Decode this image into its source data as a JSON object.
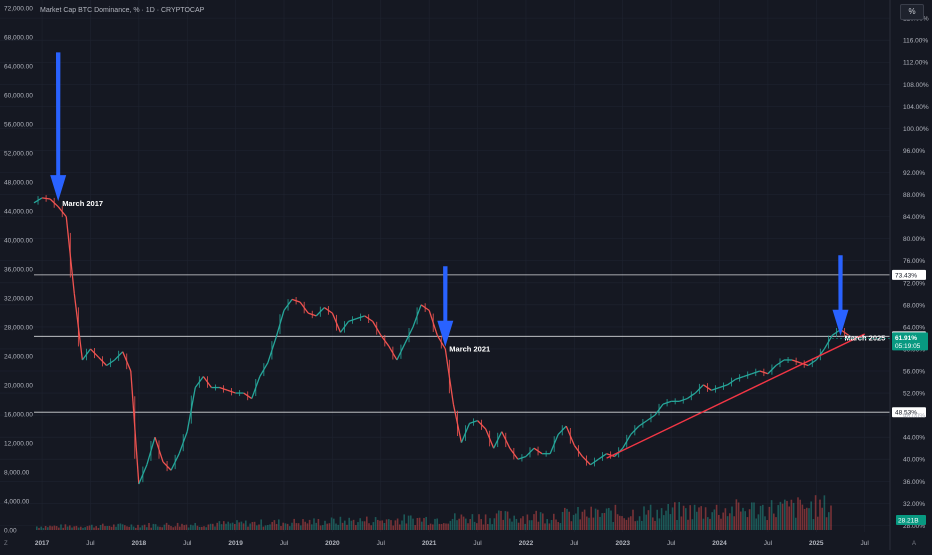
{
  "header": {
    "title": "Market Cap BTC Dominance, % · 1D · CRYPTOCAP"
  },
  "percent_button": "%",
  "footer": {
    "left_icon": "Z",
    "right_icon": "A"
  },
  "colors": {
    "background": "#151822",
    "grid": "#1f2330",
    "axis_text": "#b2b5be",
    "candle_up": "#26a69a",
    "candle_down": "#ef5350",
    "arrow": "#2962ff",
    "trendline": "#f23645",
    "hline": "#d8d9dc",
    "price_tag": "#089981"
  },
  "chart_data": {
    "type": "line",
    "title": "Market Cap BTC Dominance, % · 1D · CRYPTOCAP",
    "x_ticks": [
      "2017",
      "Jul",
      "2018",
      "Jul",
      "2019",
      "Jul",
      "2020",
      "Jul",
      "2021",
      "Jul",
      "2022",
      "Jul",
      "2023",
      "Jul",
      "2024",
      "Jul",
      "2025",
      "Jul"
    ],
    "left_axis": {
      "ticks": [
        "0.00",
        "4,000.00",
        "8,000.00",
        "12,000.00",
        "16,000.00",
        "20,000.00",
        "24,000.00",
        "28,000.00",
        "32,000.00",
        "36,000.00",
        "40,000.00",
        "44,000.00",
        "48,000.00",
        "52,000.00",
        "56,000.00",
        "60,000.00",
        "64,000.00",
        "68,000.00",
        "72,000.00"
      ]
    },
    "right_axis": {
      "ticks": [
        "28.00%",
        "32.00%",
        "36.00%",
        "40.00%",
        "44.00%",
        "48.00%",
        "52.00%",
        "56.00%",
        "60.00%",
        "64.00%",
        "68.00%",
        "72.00%",
        "76.00%",
        "80.00%",
        "84.00%",
        "88.00%",
        "92.00%",
        "96.00%",
        "100.00%",
        "104.00%",
        "108.00%",
        "112.00%",
        "116.00%",
        "120.00%"
      ],
      "range": [
        26.8,
        122.2
      ]
    },
    "series": [
      {
        "x": [
          "2016-12",
          "2017-01",
          "2017-02",
          "2017-03",
          "2017-04",
          "2017-05",
          "2017-06",
          "2017-07",
          "2017-08",
          "2017-09",
          "2017-10",
          "2017-11",
          "2017-12",
          "2018-01",
          "2018-02",
          "2018-03",
          "2018-04",
          "2018-05",
          "2018-06",
          "2018-07",
          "2018-08",
          "2018-09",
          "2018-10",
          "2018-11",
          "2018-12",
          "2019-01",
          "2019-02",
          "2019-03",
          "2019-04",
          "2019-05",
          "2019-06",
          "2019-07",
          "2019-08",
          "2019-09",
          "2019-10",
          "2019-11",
          "2019-12",
          "2020-01",
          "2020-02",
          "2020-03",
          "2020-04",
          "2020-05",
          "2020-06",
          "2020-07",
          "2020-08",
          "2020-09",
          "2020-10",
          "2020-11",
          "2020-12",
          "2021-01",
          "2021-02",
          "2021-03",
          "2021-04",
          "2021-05",
          "2021-06",
          "2021-07",
          "2021-08",
          "2021-09",
          "2021-10",
          "2021-11",
          "2021-12",
          "2022-01",
          "2022-02",
          "2022-03",
          "2022-04",
          "2022-05",
          "2022-06",
          "2022-07",
          "2022-08",
          "2022-09",
          "2022-10",
          "2022-11",
          "2022-12",
          "2023-01",
          "2023-02",
          "2023-03",
          "2023-04",
          "2023-05",
          "2023-06",
          "2023-07",
          "2023-08",
          "2023-09",
          "2023-10",
          "2023-11",
          "2023-12",
          "2024-01",
          "2024-02",
          "2024-03",
          "2024-04",
          "2024-05",
          "2024-06",
          "2024-07",
          "2024-08",
          "2024-09",
          "2024-10",
          "2024-11",
          "2024-12",
          "2025-01",
          "2025-02",
          "2025-03",
          "2025-04",
          "2025-05"
        ],
        "values": [
          86.5,
          87.4,
          87.2,
          85.8,
          84.0,
          70.0,
          58.0,
          60.0,
          58.5,
          57.0,
          58.0,
          59.5,
          56.0,
          35.5,
          39.0,
          44.0,
          39.5,
          38.0,
          41.0,
          45.0,
          53.0,
          55.0,
          53.0,
          53.0,
          52.5,
          52.0,
          52.0,
          51.0,
          55.0,
          57.5,
          62.0,
          67.0,
          69.0,
          68.5,
          66.5,
          66.0,
          67.5,
          66.5,
          63.0,
          65.0,
          65.5,
          66.0,
          65.0,
          62.5,
          60.5,
          58.0,
          61.0,
          64.0,
          68.0,
          67.0,
          62.5,
          60.0,
          50.0,
          43.0,
          46.5,
          47.0,
          45.5,
          42.0,
          45.0,
          42.0,
          40.0,
          40.5,
          42.0,
          41.0,
          41.0,
          44.5,
          46.0,
          42.5,
          40.5,
          39.0,
          40.0,
          41.0,
          40.5,
          42.0,
          44.5,
          46.0,
          47.0,
          48.0,
          50.0,
          50.5,
          50.5,
          51.0,
          52.0,
          53.5,
          52.5,
          53.0,
          53.5,
          54.5,
          55.0,
          55.5,
          56.0,
          55.5,
          57.0,
          58.0,
          58.0,
          57.5,
          57.0,
          58.0,
          60.0,
          62.5,
          63.5,
          62.5
        ]
      }
    ],
    "horizontal_lines": [
      {
        "label": "73.43%",
        "value": 73.43
      },
      {
        "label": "62.29%",
        "value": 62.29
      },
      {
        "label": "48.53%",
        "value": 48.53
      }
    ],
    "trendline": {
      "from": [
        "2022-11",
        40.2
      ],
      "to": [
        "2025-07",
        62.7
      ]
    },
    "annotations": [
      {
        "label": "March 2017",
        "x": "2017-03",
        "arrow_top": 113.8,
        "arrow_bottom": 86.8
      },
      {
        "label": "March 2021",
        "x": "2021-03",
        "arrow_top": 75.0,
        "arrow_bottom": 60.4
      },
      {
        "label": "March 2025",
        "x": "2025-04",
        "arrow_top": 77.0,
        "arrow_bottom": 62.4
      }
    ],
    "current_price": {
      "label": "61.91%",
      "value": 61.91,
      "countdown": "05:19:05"
    },
    "volume_tag": "28.21B",
    "grid": true
  }
}
